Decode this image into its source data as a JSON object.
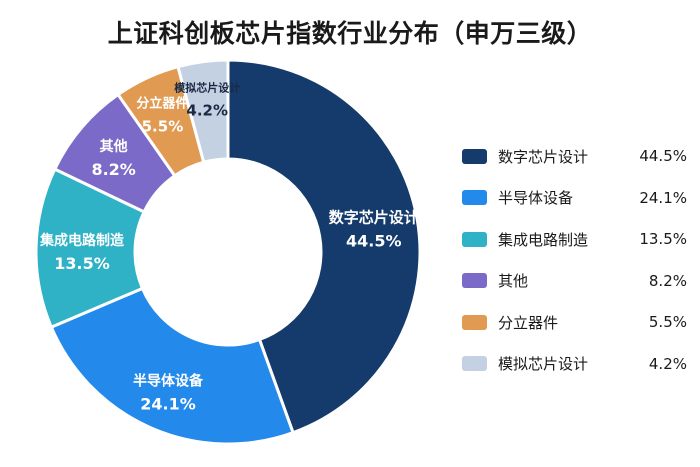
{
  "title": "上证科创板芯片指数行业分布（申万三级）",
  "chart_data": {
    "type": "pie",
    "title": "上证科创板芯片指数行业分布（申万三级）",
    "categories": [
      "数字芯片设计",
      "半导体设备",
      "集成电路制造",
      "其他",
      "分立器件",
      "模拟芯片设计"
    ],
    "values": [
      44.5,
      24.1,
      13.5,
      8.2,
      5.5,
      4.2
    ],
    "value_labels": [
      "44.5%",
      "24.1%",
      "13.5%",
      "8.2%",
      "5.5%",
      "4.2%"
    ],
    "colors": [
      "#153b6c",
      "#2389ea",
      "#2fb1c6",
      "#7c6ac9",
      "#e09a52",
      "#c4d1e3"
    ],
    "label_colors": [
      "#ffffff",
      "#ffffff",
      "#ffffff",
      "#ffffff",
      "#ffffff",
      "#1a2a44"
    ],
    "legend_position": "right"
  }
}
